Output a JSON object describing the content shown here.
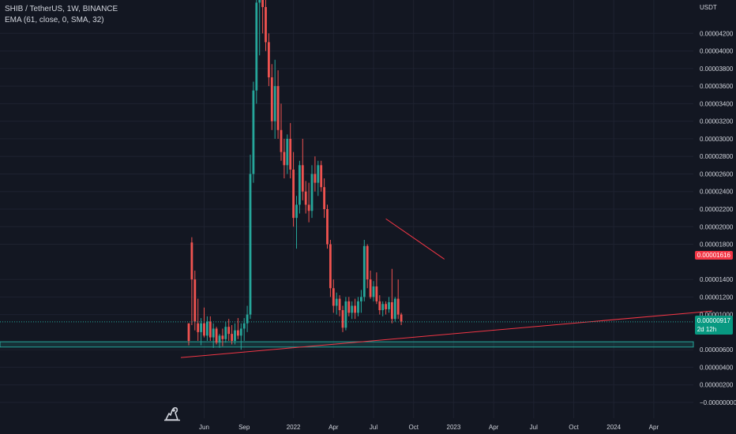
{
  "header": {
    "symbol_line": "SHIB / TetherUS, 1W, BINANCE",
    "indicator_line": "EMA (61, close, 0, SMA, 32)"
  },
  "axis": {
    "currency": "USDT"
  },
  "tags": {
    "last_price": "0.00001616",
    "current_price": "0.00000917",
    "countdown": "2d 12h"
  },
  "colors": {
    "background": "#131722",
    "up": "#26a69a",
    "down": "#ef5350",
    "trend": "#f23645",
    "grid": "#1e2230"
  },
  "logo_icon": "tradingview-dino-icon",
  "chart_data": {
    "type": "candlestick",
    "title": "SHIB / TetherUS, 1W, BINANCE",
    "y_ticks": [
      "0.00004200",
      "0.00004000",
      "0.00003800",
      "0.00003600",
      "0.00003400",
      "0.00003200",
      "0.00003000",
      "0.00002800",
      "0.00002600",
      "0.00002400",
      "0.00002200",
      "0.00002000",
      "0.00001800",
      "0.00001400",
      "0.00001200",
      "0.00001000",
      "0.00000600",
      "0.00000400",
      "0.00000200",
      "−0.00000000"
    ],
    "y_values": [
      4.2e-05,
      4e-05,
      3.8e-05,
      3.6e-05,
      3.4e-05,
      3.2e-05,
      3e-05,
      2.8e-05,
      2.6e-05,
      2.4e-05,
      2.2e-05,
      2e-05,
      1.8e-05,
      1.4e-05,
      1.2e-05,
      1e-05,
      6e-06,
      4e-06,
      2e-06,
      0
    ],
    "ylim": [
      -1.8e-06,
      4.58e-05
    ],
    "x_ticks": [
      "Jun",
      "Sep",
      "2022",
      "Apr",
      "Jul",
      "Oct",
      "2023",
      "Apr",
      "Jul",
      "Oct",
      "2024",
      "Apr"
    ],
    "x_tick_weeks": [
      5,
      18,
      34,
      47,
      60,
      73,
      86,
      99,
      112,
      125,
      138,
      151
    ],
    "support_zone": [
      6.3e-06,
      6.9e-06
    ],
    "trendline_support": [
      [
        0,
        5.1e-06
      ],
      [
        170,
        1.04e-05
      ]
    ],
    "trendline_resistance": [
      [
        64,
        2.09e-05
      ],
      [
        83,
        1.63e-05
      ]
    ],
    "candles": [
      [
        0,
        9e-06,
        9e-06,
        6.5e-06,
        7e-06
      ],
      [
        1,
        1.82e-05,
        1.88e-05,
        8.8e-06,
        1.4e-05
      ],
      [
        2,
        1.4e-05,
        1.5e-05,
        8.2e-06,
        9.2e-06
      ],
      [
        3,
        9e-06,
        1.18e-05,
        7e-06,
        8e-06
      ],
      [
        4,
        8e-06,
        9.6e-06,
        6.5e-06,
        9e-06
      ],
      [
        5,
        9e-06,
        1.08e-05,
        7.4e-06,
        7.6e-06
      ],
      [
        6,
        7.6e-06,
        9.8e-06,
        7e-06,
        9.2e-06
      ],
      [
        7,
        9.2e-06,
        9.8e-06,
        7e-06,
        7.4e-06
      ],
      [
        8,
        7.4e-06,
        9e-06,
        6.2e-06,
        8.4e-06
      ],
      [
        9,
        8.4e-06,
        8.6e-06,
        6.6e-06,
        6.8e-06
      ],
      [
        10,
        6.8e-06,
        7.8e-06,
        6.2e-06,
        7.6e-06
      ],
      [
        11,
        7.6e-06,
        8.4e-06,
        6.4e-06,
        7.2e-06
      ],
      [
        12,
        7.2e-06,
        9.2e-06,
        6.8e-06,
        8.6e-06
      ],
      [
        13,
        8.6e-06,
        9.5e-06,
        7e-06,
        7.8e-06
      ],
      [
        14,
        7.8e-06,
        8.8e-06,
        6.6e-06,
        7e-06
      ],
      [
        15,
        7e-06,
        9e-06,
        6.6e-06,
        8.2e-06
      ],
      [
        16,
        8.2e-06,
        9.6e-06,
        7.2e-06,
        7.6e-06
      ],
      [
        17,
        7.6e-06,
        9e-06,
        6e-06,
        8.4e-06
      ],
      [
        18,
        8.4e-06,
        9.6e-06,
        7e-06,
        9e-06
      ],
      [
        19,
        9e-06,
        1.1e-05,
        8e-06,
        1e-05
      ],
      [
        20,
        1e-05,
        2.82e-05,
        9.5e-06,
        2.6e-05
      ],
      [
        21,
        2.6e-05,
        3.65e-05,
        2.5e-05,
        3.55e-05
      ],
      [
        22,
        3.55e-05,
        4.6e-05,
        3.4e-05,
        4.55e-05
      ],
      [
        23,
        4.55e-05,
        4.6e-05,
        3.95e-05,
        4.6e-05
      ],
      [
        24,
        4.6e-05,
        4.6e-05,
        4.2e-05,
        4.5e-05
      ],
      [
        25,
        4.5e-05,
        4.6e-05,
        4e-05,
        4.1e-05
      ],
      [
        26,
        4.1e-05,
        4.2e-05,
        3.6e-05,
        3.7e-05
      ],
      [
        27,
        3.7e-05,
        3.85e-05,
        3.1e-05,
        3.2e-05
      ],
      [
        28,
        3.2e-05,
        3.9e-05,
        3e-05,
        3.6e-05
      ],
      [
        29,
        3.6e-05,
        3.78e-05,
        3e-05,
        3.1e-05
      ],
      [
        30,
        3.1e-05,
        3.4e-05,
        2.75e-05,
        2.85e-05
      ],
      [
        31,
        2.85e-05,
        3e-05,
        2.55e-05,
        2.7e-05
      ],
      [
        32,
        2.7e-05,
        3.05e-05,
        2.6e-05,
        3e-05
      ],
      [
        33,
        3e-05,
        3.18e-05,
        2.55e-05,
        2.65e-05
      ],
      [
        34,
        2.65e-05,
        2.85e-05,
        2e-05,
        2.1e-05
      ],
      [
        35,
        2.1e-05,
        2.35e-05,
        1.75e-05,
        2.25e-05
      ],
      [
        36,
        2.25e-05,
        2.75e-05,
        2.15e-05,
        2.7e-05
      ],
      [
        37,
        2.7e-05,
        3e-05,
        2.3e-05,
        2.4e-05
      ],
      [
        38,
        2.4e-05,
        2.52e-05,
        2.15e-05,
        2.25e-05
      ],
      [
        39,
        2.25e-05,
        2.5e-05,
        2.05e-05,
        2.18e-05
      ],
      [
        40,
        2.18e-05,
        2.7e-05,
        2.1e-05,
        2.6e-05
      ],
      [
        41,
        2.6e-05,
        2.8e-05,
        2.4e-05,
        2.5e-05
      ],
      [
        42,
        2.5e-05,
        2.75e-05,
        2.35e-05,
        2.7e-05
      ],
      [
        43,
        2.7e-05,
        2.75e-05,
        2.4e-05,
        2.45e-05
      ],
      [
        44,
        2.45e-05,
        2.55e-05,
        2.1e-05,
        2.2e-05
      ],
      [
        45,
        2.2e-05,
        2.25e-05,
        1.75e-05,
        1.8e-05
      ],
      [
        46,
        1.8e-05,
        1.85e-05,
        1.2e-05,
        1.3e-05
      ],
      [
        47,
        1.3e-05,
        1.4e-05,
        1.02e-05,
        1.1e-05
      ],
      [
        48,
        1.1e-05,
        1.25e-05,
        1e-05,
        1.18e-05
      ],
      [
        49,
        1.18e-05,
        1.22e-05,
        9.8e-06,
        1.05e-05
      ],
      [
        50,
        1.05e-05,
        1.1e-05,
        8e-06,
        8.5e-06
      ],
      [
        51,
        8.5e-06,
        1.2e-05,
        8.2e-06,
        1.15e-05
      ],
      [
        52,
        1.15e-05,
        1.2e-05,
        9.8e-06,
        1.02e-05
      ],
      [
        53,
        1.02e-05,
        1.15e-05,
        9.5e-06,
        1.1e-05
      ],
      [
        54,
        1.1e-05,
        1.18e-05,
        9.5e-06,
        1.02e-05
      ],
      [
        55,
        1.02e-05,
        1.2e-05,
        9.8e-06,
        1.15e-05
      ],
      [
        56,
        1.15e-05,
        1.28e-05,
        1.02e-05,
        1.2e-05
      ],
      [
        57,
        1.2e-05,
        1.85e-05,
        1.15e-05,
        1.78e-05
      ],
      [
        58,
        1.78e-05,
        1.8e-05,
        1.3e-05,
        1.4e-05
      ],
      [
        59,
        1.4e-05,
        1.5e-05,
        1.18e-05,
        1.2e-05
      ],
      [
        60,
        1.2e-05,
        1.38e-05,
        1.15e-05,
        1.32e-05
      ],
      [
        61,
        1.32e-05,
        1.48e-05,
        1.12e-05,
        1.15e-05
      ],
      [
        62,
        1.15e-05,
        1.22e-05,
        1e-05,
        1.05e-05
      ],
      [
        63,
        1.05e-05,
        1.15e-05,
        9.8e-06,
        1.12e-05
      ],
      [
        64,
        1.12e-05,
        1.15e-05,
        1e-05,
        1.06e-05
      ],
      [
        65,
        1.06e-05,
        1.2e-05,
        1.02e-05,
        1.14e-05
      ],
      [
        66,
        1.14e-05,
        1.52e-05,
        9e-06,
        9.5e-06
      ],
      [
        67,
        9.5e-06,
        1.2e-05,
        9.2e-06,
        1.18e-05
      ],
      [
        68,
        1.18e-05,
        1.4e-05,
        9.5e-06,
        1e-05
      ],
      [
        69,
        1e-05,
        1.02e-05,
        8.8e-06,
        9.2e-06
      ]
    ]
  }
}
